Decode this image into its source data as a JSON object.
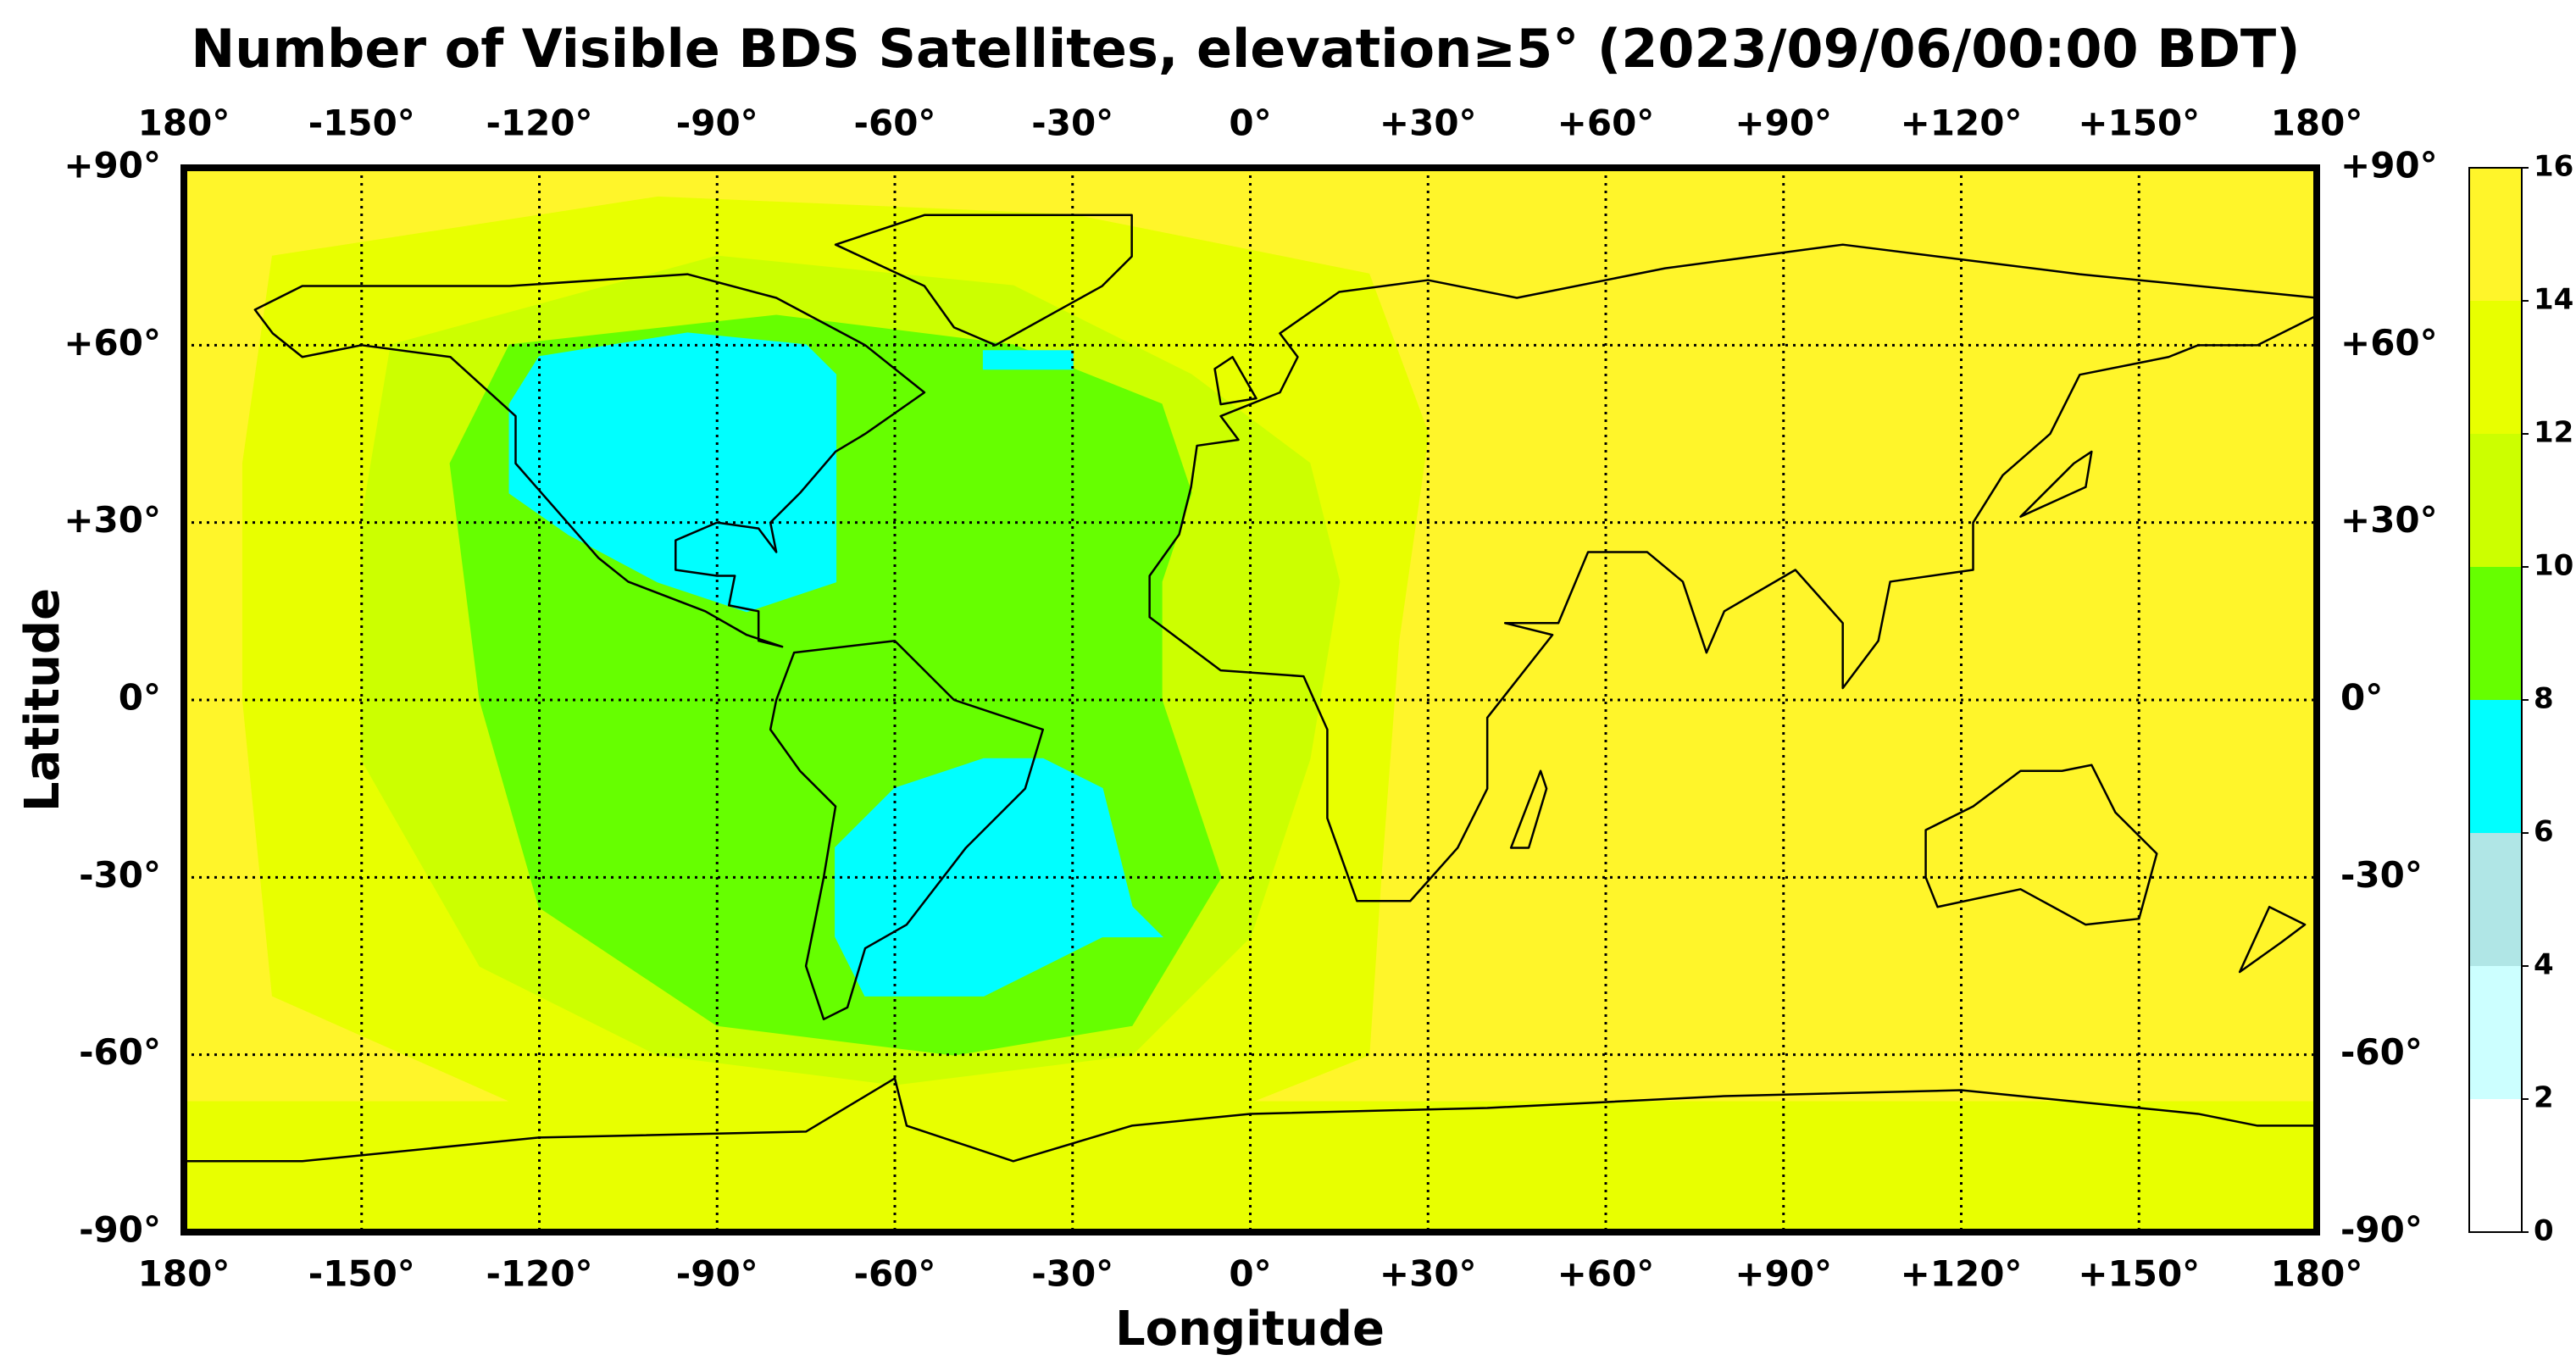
{
  "chart_data": {
    "type": "map",
    "title": "Number of Visible BDS Satellites, elevation≥5° (2023/09/06/00:00 BDT)",
    "x_label": "Longitude",
    "y_label": "Latitude",
    "xlim": [
      -180,
      180
    ],
    "ylim": [
      -90,
      90
    ],
    "xticks": [
      {
        "value": -180,
        "label": "180°"
      },
      {
        "value": -150,
        "label": "-150°"
      },
      {
        "value": -120,
        "label": "-120°"
      },
      {
        "value": -90,
        "label": "-90°"
      },
      {
        "value": -60,
        "label": "-60°"
      },
      {
        "value": -30,
        "label": "-30°"
      },
      {
        "value": 0,
        "label": "0°"
      },
      {
        "value": 30,
        "label": "+30°"
      },
      {
        "value": 60,
        "label": "+60°"
      },
      {
        "value": 90,
        "label": "+90°"
      },
      {
        "value": 120,
        "label": "+120°"
      },
      {
        "value": 150,
        "label": "+150°"
      },
      {
        "value": 180,
        "label": "180°"
      }
    ],
    "yticks": [
      {
        "value": -90,
        "label": "-90°"
      },
      {
        "value": -60,
        "label": "-60°"
      },
      {
        "value": -30,
        "label": "-30°"
      },
      {
        "value": 0,
        "label": "0°"
      },
      {
        "value": 30,
        "label": "+30°"
      },
      {
        "value": 60,
        "label": "+60°"
      },
      {
        "value": 90,
        "label": "+90°"
      }
    ],
    "grid": true,
    "colorbar": {
      "levels": [
        0,
        2,
        4,
        6,
        8,
        10,
        12,
        14,
        16
      ],
      "colors": [
        "#ffffff",
        "#ccffff",
        "#b0e6e6",
        "#00ffff",
        "#66ff00",
        "#ccff00",
        "#e8ff00",
        "#fff52a"
      ]
    },
    "regions": [
      {
        "value": 14,
        "polygon": [
          [
            -180,
            90
          ],
          [
            180,
            90
          ],
          [
            180,
            -90
          ],
          [
            -180,
            -90
          ]
        ]
      },
      {
        "value": 12,
        "polygon": [
          [
            -180,
            -68
          ],
          [
            180,
            -68
          ],
          [
            180,
            -90
          ],
          [
            -180,
            -90
          ]
        ]
      },
      {
        "value": 12,
        "polygon": [
          [
            -165,
            75
          ],
          [
            -100,
            85
          ],
          [
            -30,
            82
          ],
          [
            20,
            72
          ],
          [
            30,
            45
          ],
          [
            25,
            10
          ],
          [
            22,
            -30
          ],
          [
            20,
            -60
          ],
          [
            -10,
            -72
          ],
          [
            -120,
            -70
          ],
          [
            -165,
            -50
          ],
          [
            -170,
            0
          ],
          [
            -170,
            40
          ]
        ]
      },
      {
        "value": 10,
        "polygon": [
          [
            -145,
            60
          ],
          [
            -90,
            75
          ],
          [
            -40,
            70
          ],
          [
            -10,
            55
          ],
          [
            10,
            40
          ],
          [
            15,
            20
          ],
          [
            10,
            -10
          ],
          [
            0,
            -40
          ],
          [
            -20,
            -60
          ],
          [
            -60,
            -65
          ],
          [
            -100,
            -60
          ],
          [
            -130,
            -45
          ],
          [
            -150,
            -10
          ],
          [
            -150,
            30
          ]
        ]
      },
      {
        "value": 8,
        "polygon": [
          [
            -125,
            60
          ],
          [
            -80,
            65
          ],
          [
            -40,
            60
          ],
          [
            -15,
            50
          ],
          [
            -10,
            35
          ],
          [
            -15,
            20
          ],
          [
            -15,
            0
          ],
          [
            -5,
            -30
          ],
          [
            -20,
            -55
          ],
          [
            -50,
            -60
          ],
          [
            -90,
            -55
          ],
          [
            -120,
            -35
          ],
          [
            -130,
            0
          ],
          [
            -135,
            40
          ]
        ]
      },
      {
        "value": 6,
        "polygon": [
          [
            -120,
            58
          ],
          [
            -95,
            62
          ],
          [
            -75,
            60
          ],
          [
            -70,
            55
          ],
          [
            -70,
            20
          ],
          [
            -85,
            15
          ],
          [
            -100,
            20
          ],
          [
            -115,
            28
          ],
          [
            -125,
            35
          ],
          [
            -125,
            50
          ]
        ]
      },
      {
        "value": 6,
        "polygon": [
          [
            -45,
            -10
          ],
          [
            -35,
            -10
          ],
          [
            -25,
            -15
          ],
          [
            -20,
            -35
          ],
          [
            -15,
            -40
          ],
          [
            -25,
            -40
          ],
          [
            -35,
            -45
          ],
          [
            -45,
            -50
          ],
          [
            -65,
            -50
          ],
          [
            -70,
            -40
          ],
          [
            -70,
            -25
          ],
          [
            -60,
            -15
          ]
        ]
      },
      {
        "value": 6,
        "polygon": [
          [
            -45,
            59
          ],
          [
            -30,
            59
          ],
          [
            -30,
            56
          ],
          [
            -45,
            56
          ]
        ]
      }
    ]
  }
}
